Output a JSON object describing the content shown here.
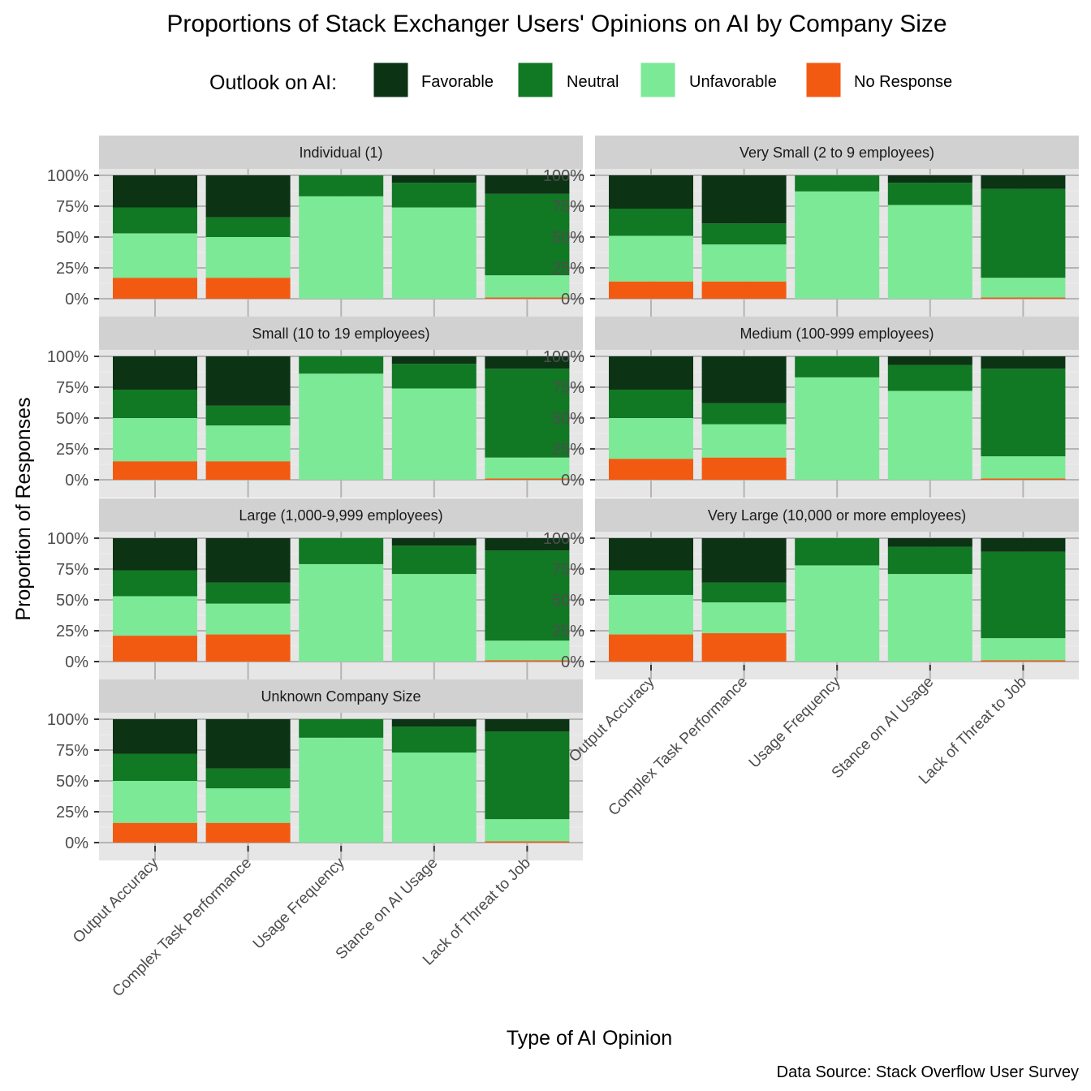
{
  "title": "Proportions of Stack Exchanger Users' Opinions on AI by Company Size",
  "caption": "Data Source: Stack Overflow User Survey",
  "legend_title": "Outlook on AI:",
  "colors": {
    "Favorable": "#0b3314",
    "Neutral": "#117824",
    "Unfavorable": "#7ce996",
    "No Response": "#f25a12",
    "panel_bg": "#e6e6e6",
    "strip_bg": "#d1d1d1",
    "grid": "#b4b4b4"
  },
  "chart_data": {
    "type": "bar",
    "stacked": true,
    "layout": "facet_wrap 2 columns",
    "xlabel": "Type of AI Opinion",
    "ylabel": "Proportion of Responses",
    "ylim": [
      0,
      1
    ],
    "yticks": [
      "0%",
      "25%",
      "50%",
      "75%",
      "100%"
    ],
    "legend_position": "top",
    "categories": [
      "Output Accuracy",
      "Complex Task Performance",
      "Usage Frequency",
      "Stance on AI Usage",
      "Lack of Threat to Job"
    ],
    "stack_order": [
      "No Response",
      "Unfavorable",
      "Neutral",
      "Favorable"
    ],
    "legend": [
      "Favorable",
      "Neutral",
      "Unfavorable",
      "No Response"
    ],
    "panels": [
      {
        "name": "Individual (1)",
        "series": {
          "No Response": [
            0.17,
            0.17,
            0,
            0,
            0.01
          ],
          "Unfavorable": [
            0.36,
            0.33,
            0.83,
            0.74,
            0.18
          ],
          "Neutral": [
            0.21,
            0.16,
            0.17,
            0.2,
            0.66
          ],
          "Favorable": [
            0.26,
            0.34,
            0,
            0.06,
            0.15
          ]
        }
      },
      {
        "name": "Very Small (2 to 9 employees)",
        "series": {
          "No Response": [
            0.14,
            0.14,
            0,
            0,
            0.01
          ],
          "Unfavorable": [
            0.37,
            0.3,
            0.87,
            0.76,
            0.16
          ],
          "Neutral": [
            0.22,
            0.17,
            0.13,
            0.18,
            0.72
          ],
          "Favorable": [
            0.27,
            0.39,
            0,
            0.06,
            0.11
          ]
        }
      },
      {
        "name": "Small (10 to 19 employees)",
        "series": {
          "No Response": [
            0.15,
            0.15,
            0,
            0,
            0.01
          ],
          "Unfavorable": [
            0.35,
            0.29,
            0.86,
            0.74,
            0.17
          ],
          "Neutral": [
            0.23,
            0.16,
            0.14,
            0.2,
            0.72
          ],
          "Favorable": [
            0.27,
            0.4,
            0,
            0.06,
            0.1
          ]
        }
      },
      {
        "name": "Medium (100-999 employees)",
        "series": {
          "No Response": [
            0.17,
            0.18,
            0,
            0,
            0.01
          ],
          "Unfavorable": [
            0.33,
            0.27,
            0.83,
            0.72,
            0.18
          ],
          "Neutral": [
            0.23,
            0.17,
            0.17,
            0.21,
            0.71
          ],
          "Favorable": [
            0.27,
            0.38,
            0,
            0.07,
            0.1
          ]
        }
      },
      {
        "name": "Large (1,000-9,999 employees)",
        "series": {
          "No Response": [
            0.21,
            0.22,
            0,
            0,
            0.01
          ],
          "Unfavorable": [
            0.32,
            0.25,
            0.79,
            0.71,
            0.16
          ],
          "Neutral": [
            0.21,
            0.17,
            0.21,
            0.23,
            0.73
          ],
          "Favorable": [
            0.26,
            0.36,
            0,
            0.06,
            0.1
          ]
        }
      },
      {
        "name": "Very Large (10,000 or more employees)",
        "series": {
          "No Response": [
            0.22,
            0.23,
            0,
            0,
            0.01
          ],
          "Unfavorable": [
            0.32,
            0.25,
            0.78,
            0.71,
            0.18
          ],
          "Neutral": [
            0.2,
            0.16,
            0.22,
            0.22,
            0.7
          ],
          "Favorable": [
            0.26,
            0.36,
            0,
            0.07,
            0.11
          ]
        }
      },
      {
        "name": "Unknown Company Size",
        "series": {
          "No Response": [
            0.16,
            0.16,
            0,
            0,
            0.01
          ],
          "Unfavorable": [
            0.34,
            0.28,
            0.85,
            0.73,
            0.18
          ],
          "Neutral": [
            0.22,
            0.16,
            0.15,
            0.21,
            0.71
          ],
          "Favorable": [
            0.28,
            0.4,
            0,
            0.06,
            0.1
          ]
        }
      }
    ]
  }
}
